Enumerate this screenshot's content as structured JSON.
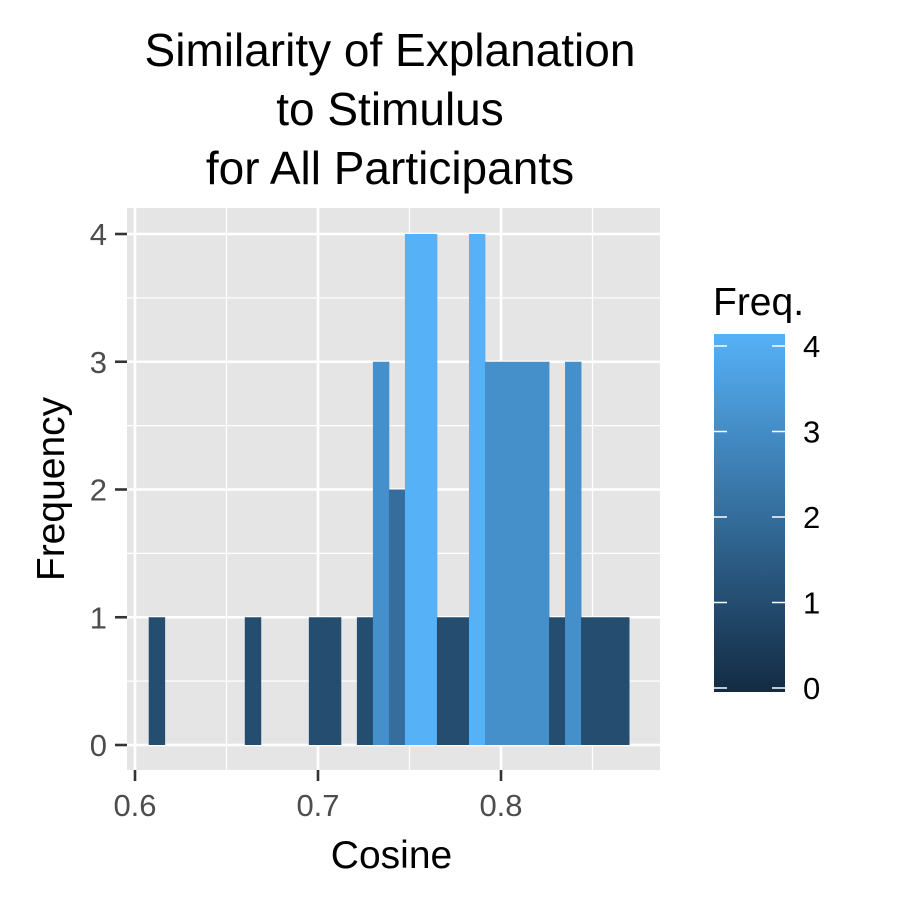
{
  "chart_data": {
    "type": "bar",
    "title_lines": [
      "Similarity of Explanation",
      "to Stimulus",
      "for All Participants"
    ],
    "xlabel": "Cosine",
    "ylabel": "Frequency",
    "xlim": [
      0.6,
      0.885
    ],
    "ylim": [
      0,
      4
    ],
    "x_ticks": [
      "0.6",
      "0.7",
      "0.8"
    ],
    "y_ticks": [
      "0",
      "1",
      "2",
      "3",
      "4"
    ],
    "grid": true,
    "bin_width": 0.00875,
    "bins": [
      {
        "start": 0.6075,
        "count": 1
      },
      {
        "start": 0.66,
        "count": 1
      },
      {
        "start": 0.695,
        "count": 1
      },
      {
        "start": 0.70375,
        "count": 1
      },
      {
        "start": 0.72125,
        "count": 1
      },
      {
        "start": 0.73,
        "count": 3
      },
      {
        "start": 0.73875,
        "count": 2
      },
      {
        "start": 0.7475,
        "count": 4
      },
      {
        "start": 0.75625,
        "count": 4
      },
      {
        "start": 0.765,
        "count": 1
      },
      {
        "start": 0.77375,
        "count": 1
      },
      {
        "start": 0.7825,
        "count": 4
      },
      {
        "start": 0.79125,
        "count": 3
      },
      {
        "start": 0.8,
        "count": 3
      },
      {
        "start": 0.80875,
        "count": 3
      },
      {
        "start": 0.8175,
        "count": 3
      },
      {
        "start": 0.82625,
        "count": 1
      },
      {
        "start": 0.835,
        "count": 3
      },
      {
        "start": 0.84375,
        "count": 1
      },
      {
        "start": 0.8525,
        "count": 1
      },
      {
        "start": 0.86125,
        "count": 1
      }
    ],
    "legend": {
      "title": "Freq.",
      "labels": [
        "0",
        "1",
        "2",
        "3",
        "4"
      ],
      "placement": "right",
      "color_low": "#132B43",
      "color_high": "#56B1F7"
    },
    "colors": {
      "panel_bg": "#e5e5e5",
      "grid": "#ffffff",
      "axis_text": "#4d4d4d"
    }
  }
}
